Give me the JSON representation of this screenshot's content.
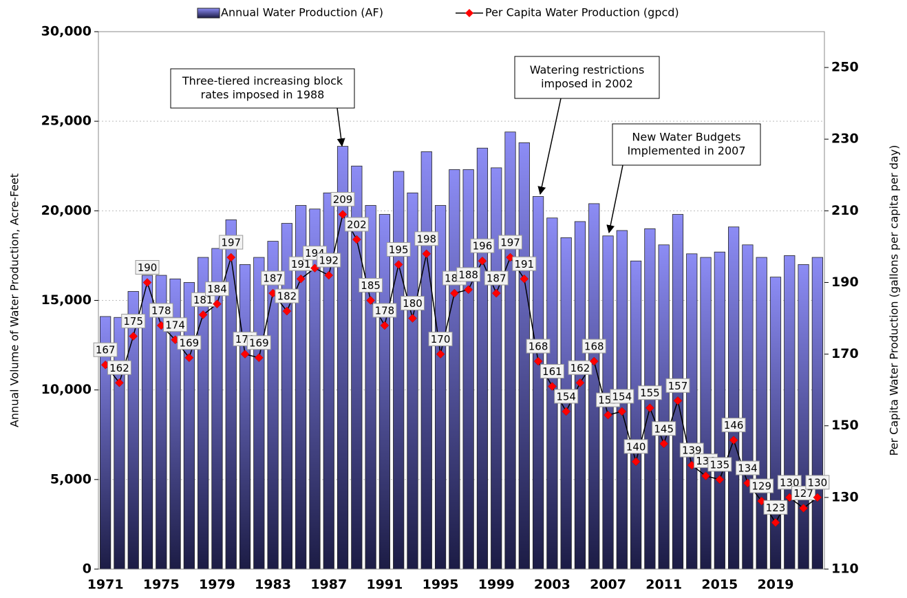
{
  "chart_data": {
    "type": "bar-line",
    "categories": [
      "1971",
      null,
      null,
      null,
      "1975",
      null,
      null,
      null,
      "1979",
      null,
      null,
      null,
      "1983",
      null,
      null,
      null,
      "1987",
      null,
      null,
      null,
      "1991",
      null,
      null,
      null,
      "1995",
      null,
      null,
      null,
      "1999",
      null,
      null,
      null,
      "2003",
      null,
      null,
      null,
      "2007",
      null,
      null,
      null,
      "2011",
      null,
      null,
      null,
      "2015",
      null,
      null,
      null,
      "2019",
      null,
      null,
      null
    ],
    "series": [
      {
        "name": "Annual Water Production (AF)",
        "type": "bar",
        "color": "#8c8cf5",
        "values": [
          14100,
          14050,
          15500,
          16400,
          16400,
          16200,
          16000,
          17400,
          17900,
          19500,
          17000,
          17400,
          18300,
          19300,
          20300,
          20100,
          21000,
          23600,
          22500,
          20300,
          19800,
          22200,
          21000,
          23300,
          20300,
          22300,
          22300,
          23500,
          22400,
          24400,
          23800,
          20800,
          19600,
          18500,
          19400,
          20400,
          18600,
          18900,
          17200,
          19000,
          18100,
          19800,
          17600,
          17400,
          17700,
          19100,
          18100,
          17400,
          16300,
          17500,
          17000,
          17400
        ]
      },
      {
        "name": "Per Capita Water Production (gpcd)",
        "type": "line",
        "axis": "y2",
        "color": "#ff0000",
        "values": [
          167,
          162,
          175,
          190,
          178,
          174,
          169,
          181,
          184,
          197,
          170,
          169,
          187,
          182,
          191,
          194,
          192,
          209,
          202,
          185,
          178,
          195,
          180,
          198,
          170,
          187,
          188,
          196,
          187,
          197,
          191,
          168,
          161,
          154,
          162,
          168,
          153,
          154,
          140,
          155,
          145,
          157,
          139,
          136,
          135,
          146,
          134,
          129,
          123,
          130,
          127,
          130
        ]
      }
    ],
    "ylabel": "Annual Volume of Water Production, Acre-Feet",
    "y2label": "Per Capita Water Production (gallons per capita per day)",
    "ylim": [
      0,
      30000
    ],
    "yticks": [
      0,
      {
        "value": 5000,
        "label": "5,000"
      },
      {
        "value": 10000,
        "label": "10,000"
      },
      {
        "value": 15000,
        "label": "15,000"
      },
      {
        "value": 20000,
        "label": "20,000"
      },
      {
        "value": 25000,
        "label": "25,000"
      },
      {
        "value": 30000,
        "label": "30,000"
      }
    ],
    "y2lim": [
      110,
      260
    ],
    "y2ticks": [
      110,
      130,
      150,
      170,
      190,
      210,
      230,
      250
    ],
    "grid": true,
    "legend": "top",
    "annotations": [
      {
        "lines": [
          "Three-tiered increasing block",
          "rates imposed in 1988"
        ]
      },
      {
        "lines": [
          "Watering restrictions",
          "imposed in 2002"
        ]
      },
      {
        "lines": [
          "New Water Budgets",
          "Implemented in 2007"
        ]
      }
    ]
  }
}
